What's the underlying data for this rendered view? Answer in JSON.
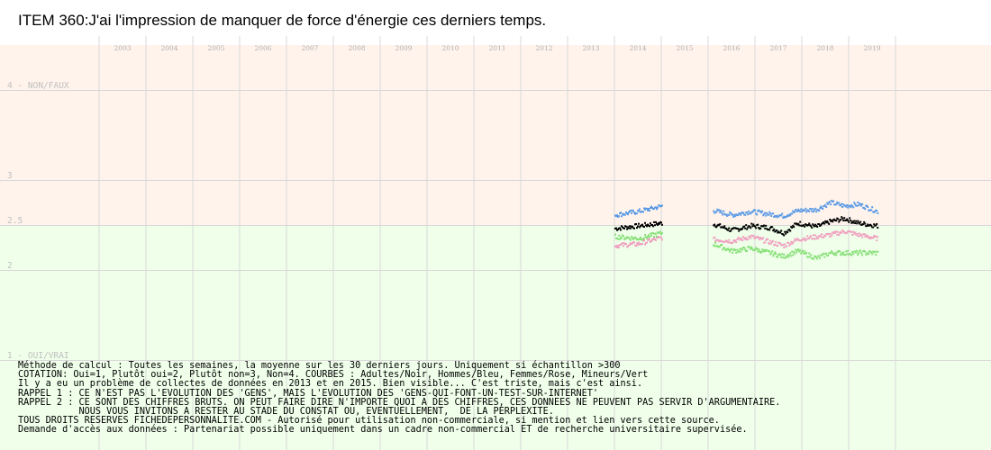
{
  "chart_data": {
    "type": "scatter",
    "title": "ITEM 360:J'ai l'impression de manquer de force d'énergie ces derniers temps.",
    "x_labels": [
      "2003",
      "2004",
      "2005",
      "2006",
      "2007",
      "2008",
      "2009",
      "2010",
      "2011",
      "2012",
      "2013",
      "2014",
      "2015",
      "2016",
      "2017",
      "2018",
      "2019"
    ],
    "y_ticks": [
      {
        "value": 4,
        "label": "4 - NON/FAUX"
      },
      {
        "value": 3,
        "label": "3"
      },
      {
        "value": 2.5,
        "label": "2.5"
      },
      {
        "value": 2,
        "label": "2"
      },
      {
        "value": 1,
        "label": "1 - OUI/VRAI"
      }
    ],
    "ylim": [
      1,
      4
    ],
    "band_split": 2.5,
    "colors": {
      "upper_band": "#fff3ec",
      "lower_band": "#efffea",
      "grid": "#d8d8d8",
      "axis_text": "#c0c0c0",
      "adultes": "#000000",
      "hommes": "#5b9be6",
      "femmes": "#f0a0c0",
      "mineurs": "#88e078"
    },
    "series": [
      {
        "name": "Adultes",
        "color": "#000000",
        "segments": [
          {
            "start": 2014.0,
            "end": 2015.0,
            "points": [
              [
                2014.0,
                2.47
              ],
              [
                2014.5,
                2.5
              ],
              [
                2015.0,
                2.53
              ]
            ]
          },
          {
            "start": 2016.1,
            "end": 2019.6,
            "points": [
              [
                2016.1,
                2.52
              ],
              [
                2016.5,
                2.45
              ],
              [
                2016.9,
                2.5
              ],
              [
                2017.3,
                2.48
              ],
              [
                2017.6,
                2.42
              ],
              [
                2017.9,
                2.53
              ],
              [
                2018.3,
                2.49
              ],
              [
                2018.6,
                2.55
              ],
              [
                2018.9,
                2.58
              ],
              [
                2019.2,
                2.53
              ],
              [
                2019.6,
                2.5
              ]
            ]
          }
        ]
      },
      {
        "name": "Hommes",
        "color": "#5b9be6",
        "segments": [
          {
            "start": 2014.0,
            "end": 2015.0,
            "points": [
              [
                2014.0,
                2.62
              ],
              [
                2014.5,
                2.66
              ],
              [
                2015.0,
                2.72
              ]
            ]
          },
          {
            "start": 2016.1,
            "end": 2019.6,
            "points": [
              [
                2016.1,
                2.67
              ],
              [
                2016.5,
                2.62
              ],
              [
                2016.9,
                2.66
              ],
              [
                2017.3,
                2.63
              ],
              [
                2017.6,
                2.61
              ],
              [
                2017.9,
                2.67
              ],
              [
                2018.3,
                2.68
              ],
              [
                2018.6,
                2.76
              ],
              [
                2018.9,
                2.72
              ],
              [
                2019.2,
                2.74
              ],
              [
                2019.6,
                2.66
              ]
            ]
          }
        ]
      },
      {
        "name": "Femmes",
        "color": "#f0a0c0",
        "segments": [
          {
            "start": 2014.0,
            "end": 2015.0,
            "points": [
              [
                2014.0,
                2.28
              ],
              [
                2014.5,
                2.3
              ],
              [
                2015.0,
                2.37
              ]
            ]
          },
          {
            "start": 2016.1,
            "end": 2019.6,
            "points": [
              [
                2016.1,
                2.35
              ],
              [
                2016.5,
                2.33
              ],
              [
                2016.9,
                2.38
              ],
              [
                2017.3,
                2.32
              ],
              [
                2017.6,
                2.28
              ],
              [
                2017.9,
                2.35
              ],
              [
                2018.3,
                2.38
              ],
              [
                2018.6,
                2.4
              ],
              [
                2018.9,
                2.44
              ],
              [
                2019.2,
                2.4
              ],
              [
                2019.6,
                2.36
              ]
            ]
          }
        ]
      },
      {
        "name": "Mineurs",
        "color": "#88e078",
        "segments": [
          {
            "start": 2014.0,
            "end": 2015.0,
            "points": [
              [
                2014.0,
                2.38
              ],
              [
                2014.5,
                2.36
              ],
              [
                2015.0,
                2.42
              ]
            ]
          },
          {
            "start": 2016.1,
            "end": 2019.6,
            "points": [
              [
                2016.1,
                2.3
              ],
              [
                2016.5,
                2.22
              ],
              [
                2016.9,
                2.25
              ],
              [
                2017.3,
                2.2
              ],
              [
                2017.6,
                2.16
              ],
              [
                2017.9,
                2.22
              ],
              [
                2018.3,
                2.14
              ],
              [
                2018.6,
                2.2
              ]
            ]
          }
        ]
      }
    ]
  },
  "notes": [
    "Méthode de calcul : Toutes les semaines, la moyenne sur les 30 derniers jours. Uniquement si échantillon >300",
    "COTATION: Oui=1, Plutôt oui=2, Plutôt non=3, Non=4. COURBES : Adultes/Noir, Hommes/Bleu, Femmes/Rose, Mineurs/Vert",
    "Il y a eu un problème de collectes de données en 2013 et en 2015. Bien visible... C'est triste, mais c'est ainsi.",
    "RAPPEL 1 : CE N'EST PAS L'EVOLUTION DES 'GENS', MAIS L'EVOLUTION DES 'GENS-QUI-FONT-UN-TEST-SUR-INTERNET'",
    "RAPPEL 2 : CE SONT DES CHIFFRES BRUTS. ON PEUT FAIRE DIRE N'IMPORTE QUOI A DES CHIFFRES, CES DONNEES NE PEUVENT PAS SERVIR D'ARGUMENTAIRE.",
    "           NOUS VOUS INVITONS A RESTER AU STADE DU CONSTAT OU, EVENTUELLEMENT,  DE LA PERPLEXITE.",
    "TOUS DROITS RESERVES FICHEDEPERSONNALITE.COM - Autorisé pour utilisation non-commerciale, si mention et lien vers cette source.",
    "Demande d'accès aux données : Partenariat possible uniquement dans un cadre non-commercial ET de recherche universitaire supervisée."
  ]
}
